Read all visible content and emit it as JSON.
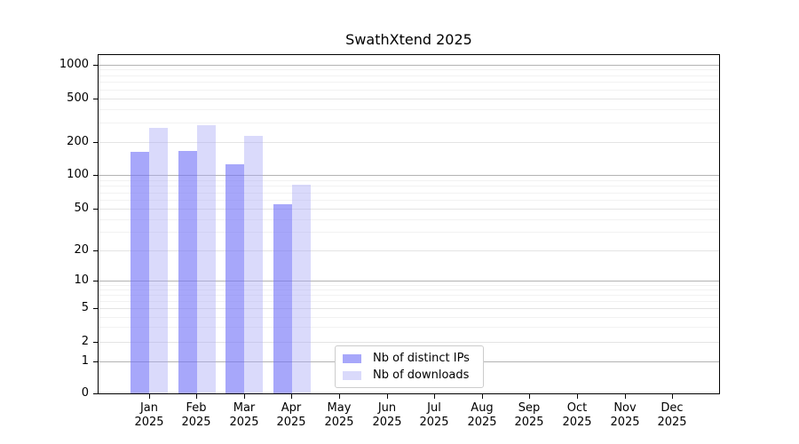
{
  "chart_data": {
    "type": "bar",
    "title": "SwathXtend 2025",
    "categories": [
      "Jan",
      "Feb",
      "Mar",
      "Apr",
      "May",
      "Jun",
      "Jul",
      "Aug",
      "Sep",
      "Oct",
      "Nov",
      "Dec"
    ],
    "year": "2025",
    "series": [
      {
        "name": "Nb of distinct IPs",
        "color": "#7171f7",
        "alpha": 0.62,
        "values": [
          163,
          166,
          125,
          55,
          0,
          0,
          0,
          0,
          0,
          0,
          0,
          0
        ]
      },
      {
        "name": "Nb of downloads",
        "color": "#a6a6f5",
        "alpha": 0.42,
        "values": [
          270,
          285,
          228,
          82,
          0,
          0,
          0,
          0,
          0,
          0,
          0,
          0
        ]
      }
    ],
    "yticks": [
      0,
      1,
      2,
      5,
      10,
      20,
      50,
      100,
      200,
      500,
      1000
    ],
    "ylim": [
      0,
      1250
    ],
    "xlabel": "",
    "ylabel": "",
    "scale": "log-like with 0 baseline (symlog)",
    "grid": true,
    "legend_position": "lower center"
  }
}
